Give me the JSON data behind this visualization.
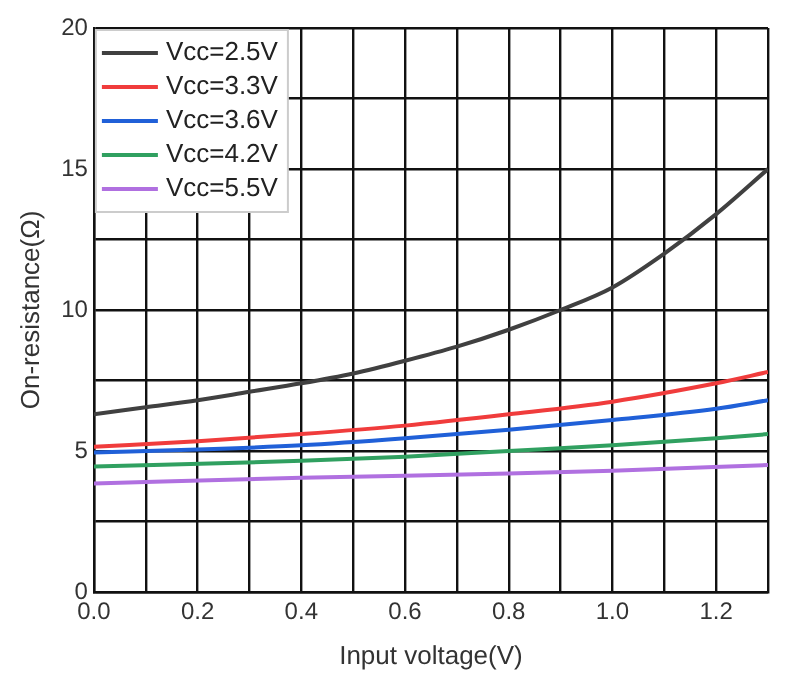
{
  "chart_data": {
    "type": "line",
    "xlabel": "Input voltage(V)",
    "ylabel": "On-resistance(Ω)",
    "xlim": [
      0,
      1.3
    ],
    "ylim": [
      0,
      20
    ],
    "xticks": [
      {
        "value": 0,
        "label": "0.0"
      },
      {
        "value": 0.1,
        "label": null
      },
      {
        "value": 0.2,
        "label": "0.2"
      },
      {
        "value": 0.3,
        "label": null
      },
      {
        "value": 0.4,
        "label": "0.4"
      },
      {
        "value": 0.5,
        "label": null
      },
      {
        "value": 0.6,
        "label": "0.6"
      },
      {
        "value": 0.7,
        "label": null
      },
      {
        "value": 0.8,
        "label": "0.8"
      },
      {
        "value": 0.9,
        "label": null
      },
      {
        "value": 1,
        "label": "1.0"
      },
      {
        "value": 1.1,
        "label": null
      },
      {
        "value": 1.2,
        "label": "1.2"
      },
      {
        "value": 1.3,
        "label": null
      }
    ],
    "yticks": [
      0,
      {
        "value": 2.5,
        "label": null
      },
      5,
      {
        "value": 7.5,
        "label": null
      },
      10,
      {
        "value": 12.5,
        "label": null
      },
      15,
      {
        "value": 17.5,
        "label": null
      },
      20
    ],
    "grid": true,
    "legend": "top left",
    "marker": "none",
    "line_style": "solid",
    "series": [
      {
        "name": "Vcc=2.5V",
        "color": "#404040",
        "x": [
          0,
          0.1,
          0.2,
          0.3,
          0.4,
          0.5,
          0.6,
          0.7,
          0.8,
          0.9,
          1.0,
          1.1,
          1.2,
          1.3
        ],
        "values": [
          6.3,
          6.55,
          6.8,
          7.1,
          7.4,
          7.75,
          8.2,
          8.7,
          9.3,
          10.0,
          10.8,
          12.0,
          13.4,
          15.0
        ]
      },
      {
        "name": "Vcc=3.3V",
        "color": "#f03c3c",
        "x": [
          0,
          0.2,
          0.4,
          0.6,
          0.8,
          1.0,
          1.2,
          1.3
        ],
        "values": [
          5.15,
          5.35,
          5.6,
          5.9,
          6.3,
          6.75,
          7.4,
          7.8
        ]
      },
      {
        "name": "Vcc=3.6V",
        "color": "#2060d8",
        "x": [
          0,
          0.2,
          0.4,
          0.6,
          0.8,
          1.0,
          1.2,
          1.3
        ],
        "values": [
          4.95,
          5.05,
          5.2,
          5.45,
          5.75,
          6.1,
          6.5,
          6.8
        ]
      },
      {
        "name": "Vcc=4.2V",
        "color": "#30a060",
        "x": [
          0,
          0.4,
          0.6,
          0.8,
          1.0,
          1.2,
          1.3
        ],
        "values": [
          4.45,
          4.65,
          4.8,
          5.0,
          5.2,
          5.45,
          5.6
        ]
      },
      {
        "name": "Vcc=5.5V",
        "color": "#b070e0",
        "x": [
          0,
          0.4,
          0.8,
          1.0,
          1.3
        ],
        "values": [
          3.85,
          4.05,
          4.2,
          4.3,
          4.5
        ]
      }
    ]
  }
}
